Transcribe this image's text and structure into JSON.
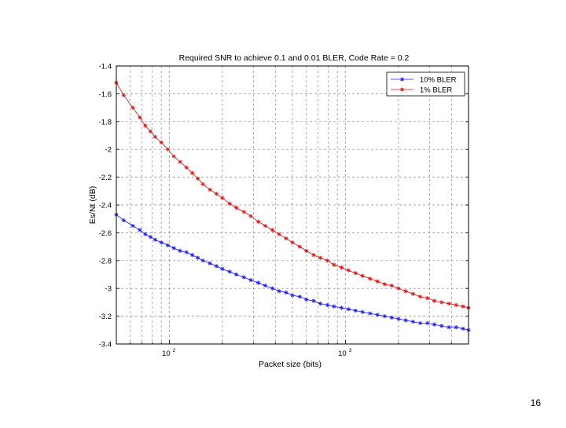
{
  "slide": {
    "number": "16"
  },
  "chart_data": {
    "type": "line",
    "title": "Required SNR to achieve 0.1 and 0.01 BLER, Code Rate = 0.2",
    "xlabel": "Packet size (bits)",
    "ylabel": "Es/Nt (dB)",
    "xscale": "log",
    "xlim": [
      50,
      5000
    ],
    "ylim": [
      -3.4,
      -1.4
    ],
    "yticks": [
      "-1.4",
      "-1.6",
      "-1.8",
      "-2",
      "-2.2",
      "-2.4",
      "-2.6",
      "-2.8",
      "-3",
      "-3.2",
      "-3.4"
    ],
    "xticks": [
      {
        "value": 100,
        "base": "10",
        "exp": "2"
      },
      {
        "value": 1000,
        "base": "10",
        "exp": "3"
      }
    ],
    "grid": true,
    "legend_position": "top-right",
    "series": [
      {
        "name": "10% BLER",
        "color": "#1a1aff",
        "x": [
          50,
          55,
          62,
          68,
          73,
          78,
          83,
          90,
          98,
          106,
          115,
          125,
          135,
          145,
          155,
          170,
          185,
          200,
          220,
          240,
          265,
          290,
          320,
          350,
          385,
          420,
          460,
          500,
          550,
          600,
          660,
          720,
          790,
          860,
          950,
          1040,
          1140,
          1250,
          1380,
          1520,
          1670,
          1830,
          2000,
          2200,
          2420,
          2660,
          2920,
          3200,
          3520,
          3870,
          4250,
          4650,
          5000
        ],
        "y": [
          -2.47,
          -2.51,
          -2.55,
          -2.58,
          -2.61,
          -2.63,
          -2.65,
          -2.67,
          -2.69,
          -2.71,
          -2.73,
          -2.74,
          -2.76,
          -2.78,
          -2.8,
          -2.82,
          -2.84,
          -2.86,
          -2.88,
          -2.9,
          -2.92,
          -2.94,
          -2.96,
          -2.98,
          -3.0,
          -3.02,
          -3.03,
          -3.05,
          -3.06,
          -3.08,
          -3.09,
          -3.11,
          -3.12,
          -3.13,
          -3.14,
          -3.15,
          -3.16,
          -3.17,
          -3.18,
          -3.19,
          -3.2,
          -3.21,
          -3.22,
          -3.23,
          -3.24,
          -3.25,
          -3.25,
          -3.26,
          -3.27,
          -3.28,
          -3.28,
          -3.29,
          -3.3
        ]
      },
      {
        "name": "1% BLER",
        "color": "#e01010",
        "x": [
          50,
          55,
          62,
          68,
          73,
          78,
          83,
          90,
          98,
          106,
          115,
          125,
          135,
          145,
          155,
          170,
          185,
          200,
          220,
          240,
          265,
          290,
          320,
          350,
          385,
          420,
          460,
          500,
          550,
          600,
          660,
          720,
          790,
          860,
          950,
          1040,
          1140,
          1250,
          1380,
          1520,
          1670,
          1830,
          2000,
          2200,
          2420,
          2660,
          2920,
          3200,
          3520,
          3870,
          4250,
          4650,
          5000
        ],
        "y": [
          -1.52,
          -1.61,
          -1.7,
          -1.77,
          -1.83,
          -1.87,
          -1.91,
          -1.95,
          -2.0,
          -2.05,
          -2.09,
          -2.13,
          -2.17,
          -2.21,
          -2.25,
          -2.29,
          -2.32,
          -2.35,
          -2.39,
          -2.42,
          -2.45,
          -2.48,
          -2.52,
          -2.55,
          -2.58,
          -2.61,
          -2.64,
          -2.67,
          -2.7,
          -2.73,
          -2.76,
          -2.78,
          -2.8,
          -2.83,
          -2.85,
          -2.87,
          -2.89,
          -2.91,
          -2.93,
          -2.95,
          -2.97,
          -2.98,
          -3.0,
          -3.02,
          -3.04,
          -3.06,
          -3.07,
          -3.09,
          -3.1,
          -3.11,
          -3.12,
          -3.13,
          -3.14
        ]
      }
    ]
  }
}
